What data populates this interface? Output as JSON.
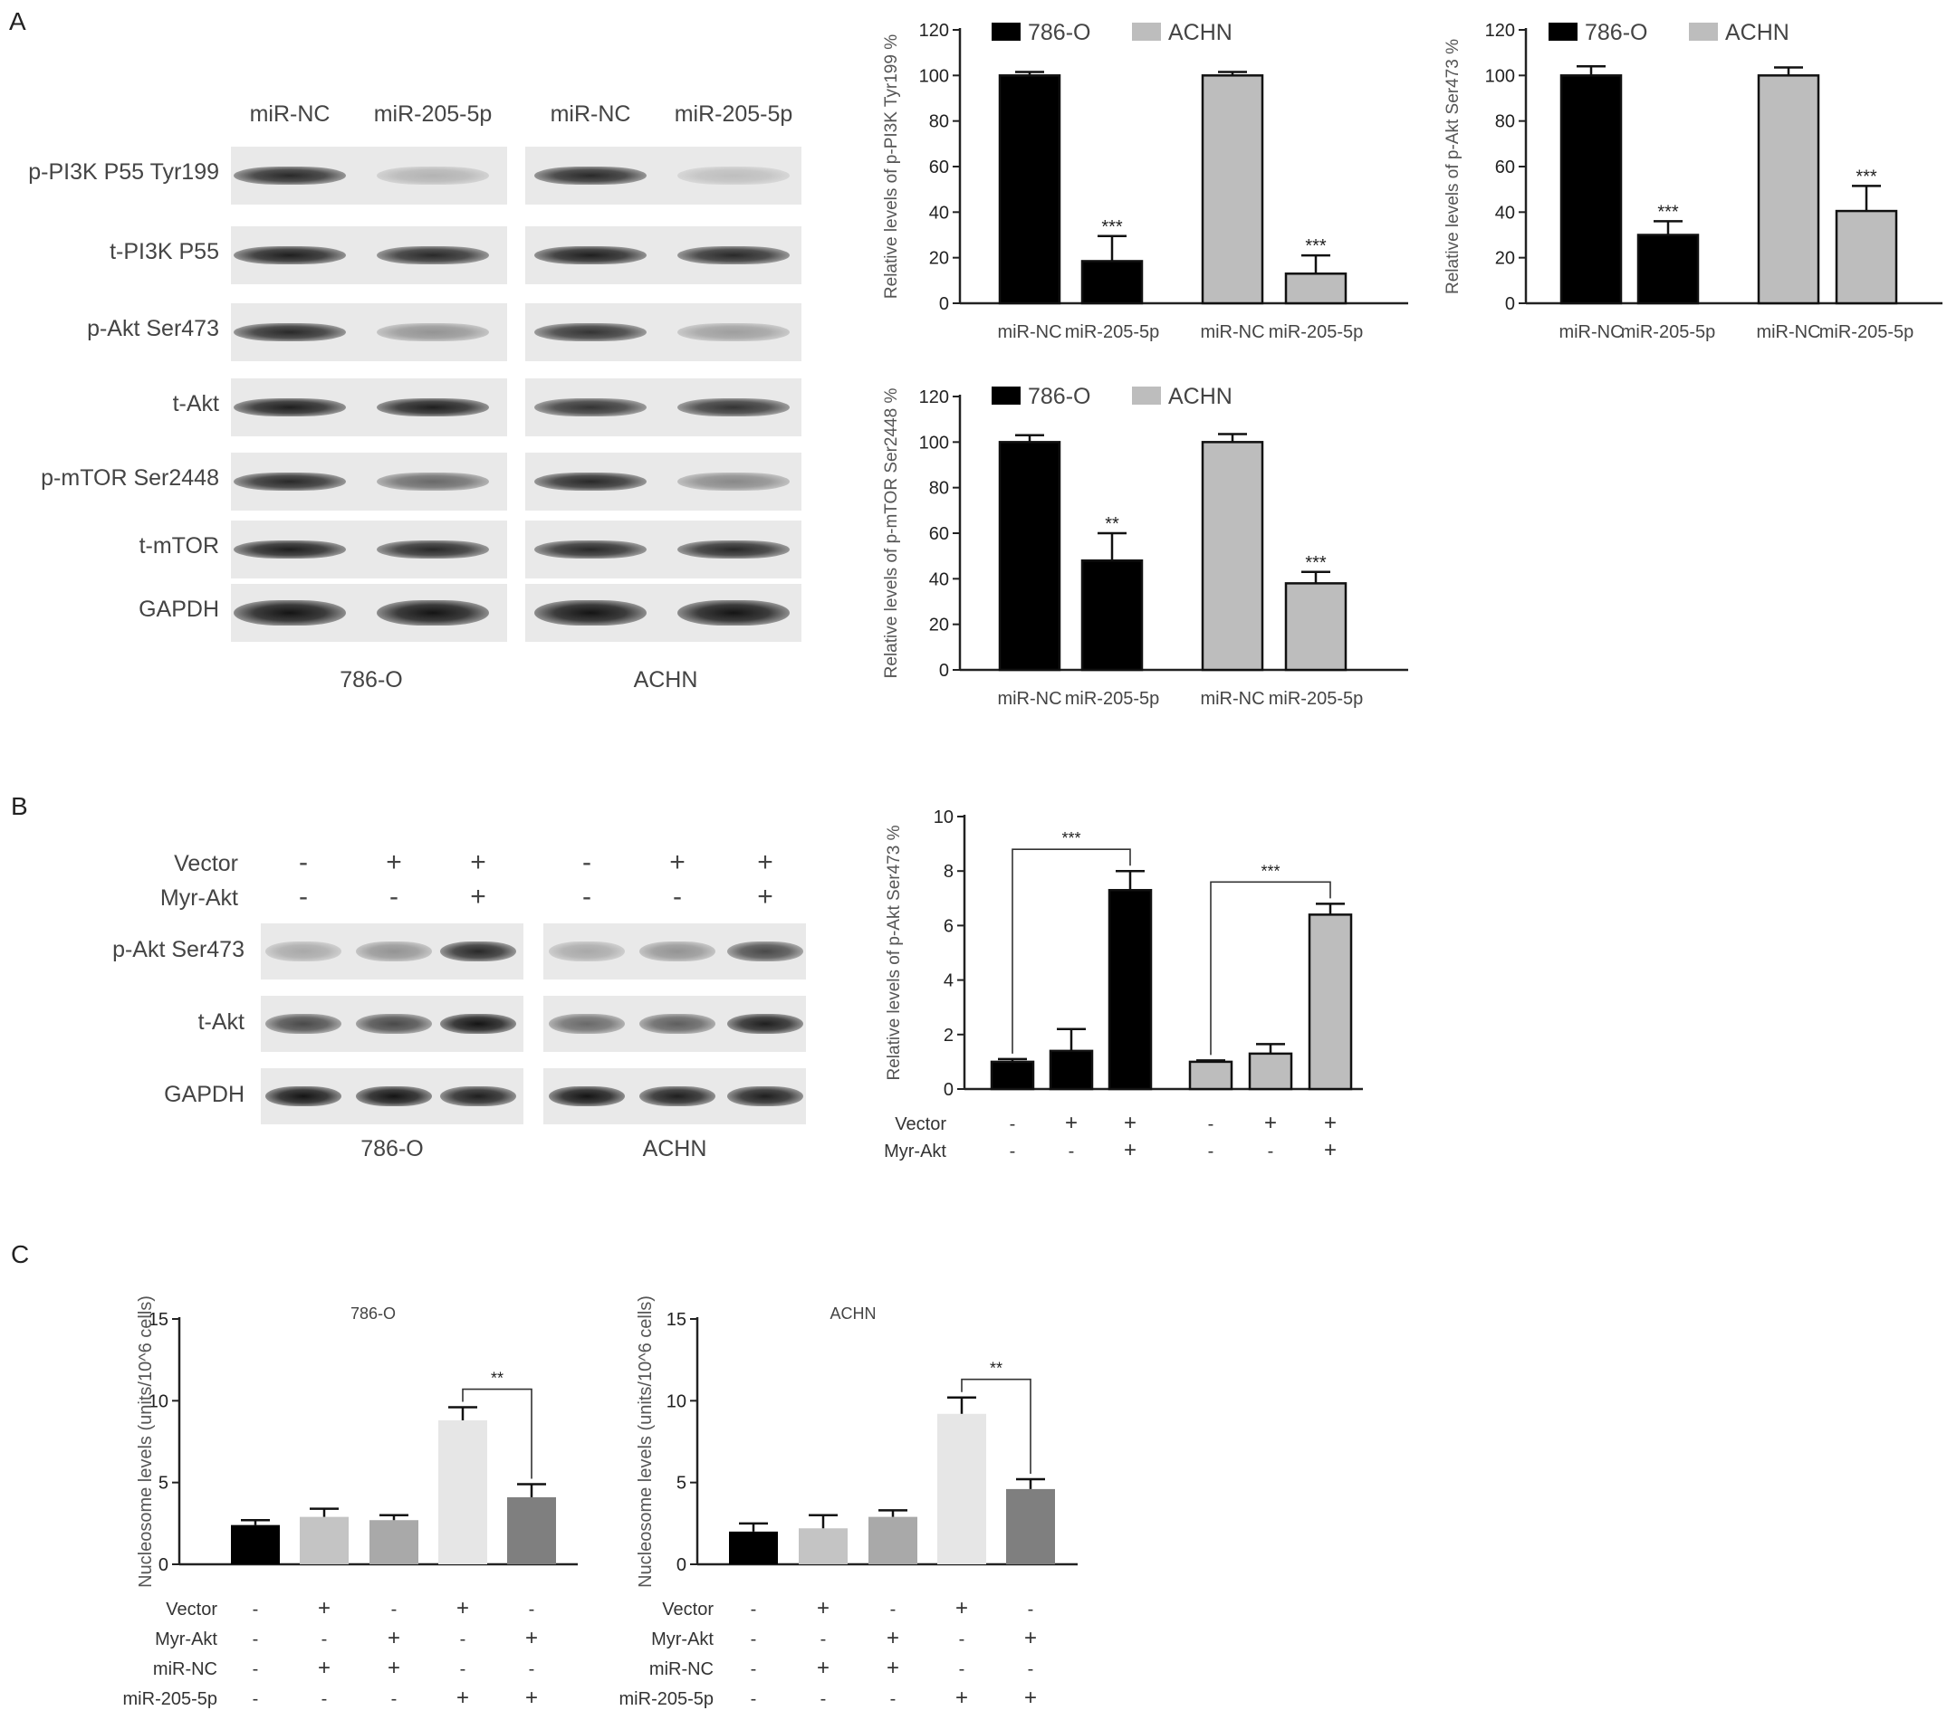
{
  "panels": {
    "a": "A",
    "b": "B",
    "c": "C"
  },
  "blot_a": {
    "lanes": [
      "miR-NC",
      "miR-205-5p",
      "miR-NC",
      "miR-205-5p"
    ],
    "rows": [
      "p-PI3K P55 Tyr199",
      "t-PI3K P55",
      "p-Akt Ser473",
      "t-Akt",
      "p-mTOR Ser2448",
      "t-mTOR",
      "GAPDH"
    ],
    "cells": [
      "786-O",
      "ACHN"
    ],
    "intensity": [
      [
        0.9,
        0.25,
        0.9,
        0.2
      ],
      [
        0.95,
        0.9,
        0.95,
        0.9
      ],
      [
        0.9,
        0.4,
        0.85,
        0.35
      ],
      [
        0.95,
        0.95,
        0.85,
        0.85
      ],
      [
        0.9,
        0.6,
        0.9,
        0.45
      ],
      [
        0.95,
        0.9,
        0.9,
        0.9
      ],
      [
        1.0,
        1.0,
        1.0,
        1.0
      ]
    ]
  },
  "blot_b": {
    "row_labels": [
      "Vector",
      "Myr-Akt"
    ],
    "signs": [
      [
        "-",
        "+",
        "+",
        "-",
        "+",
        "+"
      ],
      [
        "-",
        "-",
        "+",
        "-",
        "-",
        "+"
      ]
    ],
    "rows": [
      "p-Akt Ser473",
      "t-Akt",
      "GAPDH"
    ],
    "cells": [
      "786-O",
      "ACHN"
    ],
    "intensity": [
      [
        0.3,
        0.4,
        0.9,
        0.3,
        0.4,
        0.75
      ],
      [
        0.75,
        0.75,
        1.0,
        0.6,
        0.65,
        0.95
      ],
      [
        1.0,
        1.0,
        0.95,
        1.0,
        0.95,
        0.95
      ]
    ]
  },
  "chart_data": [
    {
      "type": "bar",
      "id": "a1",
      "ylabel": "Relative levels of p-PI3K Tyr199 %",
      "ylim": [
        0,
        120
      ],
      "yticks": [
        0,
        20,
        40,
        60,
        80,
        100,
        120
      ],
      "categories": [
        "miR-NC",
        "miR-205-5p",
        "miR-NC",
        "miR-205-5p"
      ],
      "values": [
        100,
        18.5,
        100,
        13
      ],
      "errors": [
        1.5,
        11,
        1.5,
        8
      ],
      "groups": [
        0,
        0,
        1,
        1
      ],
      "sig": [
        "",
        "***",
        "",
        "***"
      ],
      "legend": [
        "786-O",
        "ACHN"
      ],
      "legend_position": "top",
      "colors": [
        "#000000",
        "#bdbdbd"
      ]
    },
    {
      "type": "bar",
      "id": "a2",
      "ylabel": "Relative levels of p-Akt Ser473 %",
      "ylim": [
        0,
        120
      ],
      "yticks": [
        0,
        20,
        40,
        60,
        80,
        100,
        120
      ],
      "categories": [
        "miR-NC",
        "miR-205-5p",
        "miR-NC",
        "miR-205-5p"
      ],
      "values": [
        100,
        30,
        100,
        40.5
      ],
      "errors": [
        4,
        6,
        3.5,
        11
      ],
      "groups": [
        0,
        0,
        1,
        1
      ],
      "sig": [
        "",
        "***",
        "",
        "***"
      ],
      "legend": [
        "786-O",
        "ACHN"
      ],
      "legend_position": "top",
      "colors": [
        "#000000",
        "#bdbdbd"
      ]
    },
    {
      "type": "bar",
      "id": "a3",
      "ylabel": "Relative levels of p-mTOR Ser2448 %",
      "ylim": [
        0,
        120
      ],
      "yticks": [
        0,
        20,
        40,
        60,
        80,
        100,
        120
      ],
      "categories": [
        "miR-NC",
        "miR-205-5p",
        "miR-NC",
        "miR-205-5p"
      ],
      "values": [
        100,
        48,
        100,
        38
      ],
      "errors": [
        3,
        12,
        3.5,
        5
      ],
      "groups": [
        0,
        0,
        1,
        1
      ],
      "sig": [
        "",
        "**",
        "",
        "***"
      ],
      "legend": [
        "786-O",
        "ACHN"
      ],
      "legend_position": "top",
      "colors": [
        "#000000",
        "#bdbdbd"
      ]
    },
    {
      "type": "bar",
      "id": "b",
      "ylabel": "Relative levels of p-Akt Ser473 %",
      "ylim": [
        0,
        10
      ],
      "yticks": [
        0,
        2,
        4,
        6,
        8,
        10
      ],
      "values": [
        1,
        1.4,
        7.3,
        1,
        1.3,
        6.4
      ],
      "errors": [
        0.1,
        0.8,
        0.7,
        0.05,
        0.35,
        0.4
      ],
      "groups": [
        0,
        0,
        0,
        1,
        1,
        1
      ],
      "row_labels": [
        "Vector",
        "Myr-Akt"
      ],
      "signs": [
        [
          "-",
          "+",
          "+",
          "-",
          "+",
          "+"
        ],
        [
          "-",
          "-",
          "+",
          "-",
          "-",
          "+"
        ]
      ],
      "brackets": [
        {
          "from": 0,
          "to": 2,
          "label": "***"
        },
        {
          "from": 3,
          "to": 5,
          "label": "***"
        }
      ],
      "colors": [
        "#000000",
        "#bdbdbd"
      ]
    },
    {
      "type": "bar",
      "id": "c1",
      "title": "786-O",
      "ylabel": "Nucleosome levels (units/10^6 cells)",
      "ylim": [
        0,
        15
      ],
      "yticks": [
        0,
        5,
        10,
        15
      ],
      "values": [
        2.4,
        2.9,
        2.7,
        8.8,
        4.1
      ],
      "errors": [
        0.3,
        0.5,
        0.3,
        0.8,
        0.8
      ],
      "bar_colors": [
        "#000000",
        "#c4c4c4",
        "#a9a9a9",
        "#e6e6e6",
        "#7f7f7f"
      ],
      "row_labels": [
        "Vector",
        "Myr-Akt",
        "miR-NC",
        "miR-205-5p"
      ],
      "signs": [
        [
          "-",
          "+",
          "-",
          "+",
          "-"
        ],
        [
          "-",
          "-",
          "+",
          "-",
          "+"
        ],
        [
          "-",
          "+",
          "+",
          "-",
          "-"
        ],
        [
          "-",
          "-",
          "-",
          "+",
          "+"
        ]
      ],
      "brackets": [
        {
          "from": 3,
          "to": 4,
          "label": "**"
        }
      ]
    },
    {
      "type": "bar",
      "id": "c2",
      "title": "ACHN",
      "ylabel": "Nucleosome levels (units/10^6 cells)",
      "ylim": [
        0,
        15
      ],
      "yticks": [
        0,
        5,
        10,
        15
      ],
      "values": [
        2.0,
        2.2,
        2.9,
        9.2,
        4.6
      ],
      "errors": [
        0.5,
        0.8,
        0.4,
        1.0,
        0.6
      ],
      "bar_colors": [
        "#000000",
        "#c4c4c4",
        "#a9a9a9",
        "#e6e6e6",
        "#7f7f7f"
      ],
      "row_labels": [
        "Vector",
        "Myr-Akt",
        "miR-NC",
        "miR-205-5p"
      ],
      "signs": [
        [
          "-",
          "+",
          "-",
          "+",
          "-"
        ],
        [
          "-",
          "-",
          "+",
          "-",
          "+"
        ],
        [
          "-",
          "+",
          "+",
          "-",
          "-"
        ],
        [
          "-",
          "-",
          "-",
          "+",
          "+"
        ]
      ],
      "brackets": [
        {
          "from": 3,
          "to": 4,
          "label": "**"
        }
      ]
    }
  ]
}
